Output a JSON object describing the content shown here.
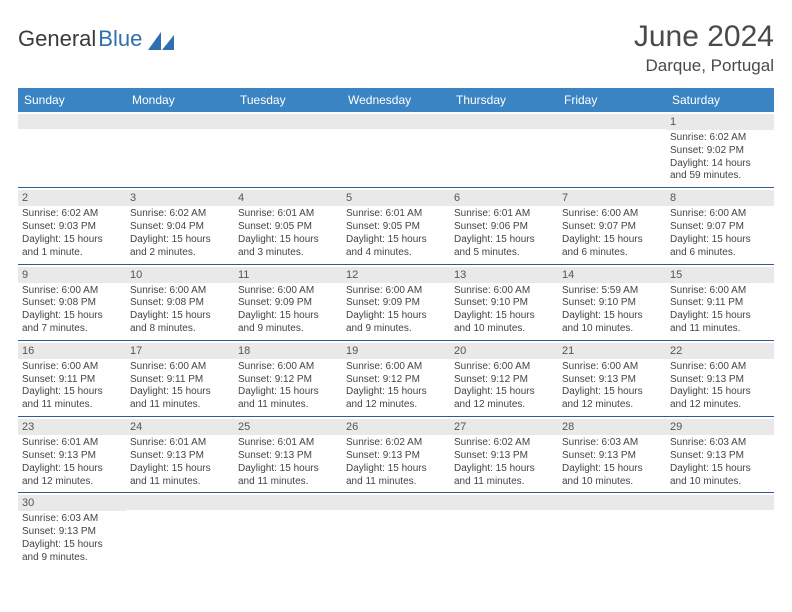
{
  "brand": {
    "part1": "General",
    "part2": "Blue",
    "icon_color": "#2f6fb0"
  },
  "header": {
    "month_title": "June 2024",
    "location": "Darque, Portugal"
  },
  "colors": {
    "header_bar": "#3b84c4",
    "header_text": "#ffffff",
    "daynum_bg": "#e9e9e9",
    "week_border": "#2d5e8f",
    "body_text": "#444444"
  },
  "weekdays": [
    "Sunday",
    "Monday",
    "Tuesday",
    "Wednesday",
    "Thursday",
    "Friday",
    "Saturday"
  ],
  "weeks": [
    [
      {
        "n": "",
        "sunrise": "",
        "sunset": "",
        "daylight": ""
      },
      {
        "n": "",
        "sunrise": "",
        "sunset": "",
        "daylight": ""
      },
      {
        "n": "",
        "sunrise": "",
        "sunset": "",
        "daylight": ""
      },
      {
        "n": "",
        "sunrise": "",
        "sunset": "",
        "daylight": ""
      },
      {
        "n": "",
        "sunrise": "",
        "sunset": "",
        "daylight": ""
      },
      {
        "n": "",
        "sunrise": "",
        "sunset": "",
        "daylight": ""
      },
      {
        "n": "1",
        "sunrise": "Sunrise: 6:02 AM",
        "sunset": "Sunset: 9:02 PM",
        "daylight": "Daylight: 14 hours and 59 minutes."
      }
    ],
    [
      {
        "n": "2",
        "sunrise": "Sunrise: 6:02 AM",
        "sunset": "Sunset: 9:03 PM",
        "daylight": "Daylight: 15 hours and 1 minute."
      },
      {
        "n": "3",
        "sunrise": "Sunrise: 6:02 AM",
        "sunset": "Sunset: 9:04 PM",
        "daylight": "Daylight: 15 hours and 2 minutes."
      },
      {
        "n": "4",
        "sunrise": "Sunrise: 6:01 AM",
        "sunset": "Sunset: 9:05 PM",
        "daylight": "Daylight: 15 hours and 3 minutes."
      },
      {
        "n": "5",
        "sunrise": "Sunrise: 6:01 AM",
        "sunset": "Sunset: 9:05 PM",
        "daylight": "Daylight: 15 hours and 4 minutes."
      },
      {
        "n": "6",
        "sunrise": "Sunrise: 6:01 AM",
        "sunset": "Sunset: 9:06 PM",
        "daylight": "Daylight: 15 hours and 5 minutes."
      },
      {
        "n": "7",
        "sunrise": "Sunrise: 6:00 AM",
        "sunset": "Sunset: 9:07 PM",
        "daylight": "Daylight: 15 hours and 6 minutes."
      },
      {
        "n": "8",
        "sunrise": "Sunrise: 6:00 AM",
        "sunset": "Sunset: 9:07 PM",
        "daylight": "Daylight: 15 hours and 6 minutes."
      }
    ],
    [
      {
        "n": "9",
        "sunrise": "Sunrise: 6:00 AM",
        "sunset": "Sunset: 9:08 PM",
        "daylight": "Daylight: 15 hours and 7 minutes."
      },
      {
        "n": "10",
        "sunrise": "Sunrise: 6:00 AM",
        "sunset": "Sunset: 9:08 PM",
        "daylight": "Daylight: 15 hours and 8 minutes."
      },
      {
        "n": "11",
        "sunrise": "Sunrise: 6:00 AM",
        "sunset": "Sunset: 9:09 PM",
        "daylight": "Daylight: 15 hours and 9 minutes."
      },
      {
        "n": "12",
        "sunrise": "Sunrise: 6:00 AM",
        "sunset": "Sunset: 9:09 PM",
        "daylight": "Daylight: 15 hours and 9 minutes."
      },
      {
        "n": "13",
        "sunrise": "Sunrise: 6:00 AM",
        "sunset": "Sunset: 9:10 PM",
        "daylight": "Daylight: 15 hours and 10 minutes."
      },
      {
        "n": "14",
        "sunrise": "Sunrise: 5:59 AM",
        "sunset": "Sunset: 9:10 PM",
        "daylight": "Daylight: 15 hours and 10 minutes."
      },
      {
        "n": "15",
        "sunrise": "Sunrise: 6:00 AM",
        "sunset": "Sunset: 9:11 PM",
        "daylight": "Daylight: 15 hours and 11 minutes."
      }
    ],
    [
      {
        "n": "16",
        "sunrise": "Sunrise: 6:00 AM",
        "sunset": "Sunset: 9:11 PM",
        "daylight": "Daylight: 15 hours and 11 minutes."
      },
      {
        "n": "17",
        "sunrise": "Sunrise: 6:00 AM",
        "sunset": "Sunset: 9:11 PM",
        "daylight": "Daylight: 15 hours and 11 minutes."
      },
      {
        "n": "18",
        "sunrise": "Sunrise: 6:00 AM",
        "sunset": "Sunset: 9:12 PM",
        "daylight": "Daylight: 15 hours and 11 minutes."
      },
      {
        "n": "19",
        "sunrise": "Sunrise: 6:00 AM",
        "sunset": "Sunset: 9:12 PM",
        "daylight": "Daylight: 15 hours and 12 minutes."
      },
      {
        "n": "20",
        "sunrise": "Sunrise: 6:00 AM",
        "sunset": "Sunset: 9:12 PM",
        "daylight": "Daylight: 15 hours and 12 minutes."
      },
      {
        "n": "21",
        "sunrise": "Sunrise: 6:00 AM",
        "sunset": "Sunset: 9:13 PM",
        "daylight": "Daylight: 15 hours and 12 minutes."
      },
      {
        "n": "22",
        "sunrise": "Sunrise: 6:00 AM",
        "sunset": "Sunset: 9:13 PM",
        "daylight": "Daylight: 15 hours and 12 minutes."
      }
    ],
    [
      {
        "n": "23",
        "sunrise": "Sunrise: 6:01 AM",
        "sunset": "Sunset: 9:13 PM",
        "daylight": "Daylight: 15 hours and 12 minutes."
      },
      {
        "n": "24",
        "sunrise": "Sunrise: 6:01 AM",
        "sunset": "Sunset: 9:13 PM",
        "daylight": "Daylight: 15 hours and 11 minutes."
      },
      {
        "n": "25",
        "sunrise": "Sunrise: 6:01 AM",
        "sunset": "Sunset: 9:13 PM",
        "daylight": "Daylight: 15 hours and 11 minutes."
      },
      {
        "n": "26",
        "sunrise": "Sunrise: 6:02 AM",
        "sunset": "Sunset: 9:13 PM",
        "daylight": "Daylight: 15 hours and 11 minutes."
      },
      {
        "n": "27",
        "sunrise": "Sunrise: 6:02 AM",
        "sunset": "Sunset: 9:13 PM",
        "daylight": "Daylight: 15 hours and 11 minutes."
      },
      {
        "n": "28",
        "sunrise": "Sunrise: 6:03 AM",
        "sunset": "Sunset: 9:13 PM",
        "daylight": "Daylight: 15 hours and 10 minutes."
      },
      {
        "n": "29",
        "sunrise": "Sunrise: 6:03 AM",
        "sunset": "Sunset: 9:13 PM",
        "daylight": "Daylight: 15 hours and 10 minutes."
      }
    ],
    [
      {
        "n": "30",
        "sunrise": "Sunrise: 6:03 AM",
        "sunset": "Sunset: 9:13 PM",
        "daylight": "Daylight: 15 hours and 9 minutes."
      },
      {
        "n": "",
        "sunrise": "",
        "sunset": "",
        "daylight": ""
      },
      {
        "n": "",
        "sunrise": "",
        "sunset": "",
        "daylight": ""
      },
      {
        "n": "",
        "sunrise": "",
        "sunset": "",
        "daylight": ""
      },
      {
        "n": "",
        "sunrise": "",
        "sunset": "",
        "daylight": ""
      },
      {
        "n": "",
        "sunrise": "",
        "sunset": "",
        "daylight": ""
      },
      {
        "n": "",
        "sunrise": "",
        "sunset": "",
        "daylight": ""
      }
    ]
  ]
}
